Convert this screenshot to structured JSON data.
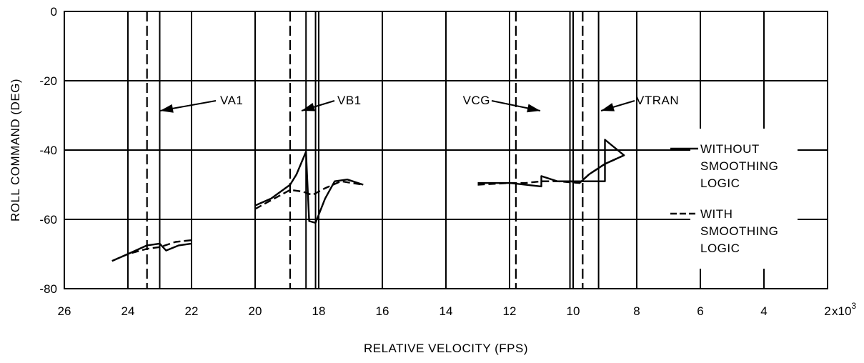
{
  "chart_data": {
    "type": "line",
    "xlabel": "RELATIVE VELOCITY (FPS)",
    "ylabel": "ROLL COMMAND (DEG)",
    "x_multiplier_label": "x10",
    "x_multiplier_exponent": "3",
    "xlim": [
      26,
      2
    ],
    "ylim": [
      -80,
      0
    ],
    "x_ticks": [
      "26",
      "24",
      "22",
      "20",
      "18",
      "16",
      "14",
      "12",
      "10",
      "8",
      "6",
      "4",
      "2"
    ],
    "y_ticks": [
      "0",
      "-20",
      "-40",
      "-60",
      "-80"
    ],
    "grid": true,
    "vertical_lines": [
      {
        "label": "VA1",
        "solid": [
          23.0
        ],
        "dashed": [
          23.4
        ]
      },
      {
        "label": "VB1",
        "solid": [
          18.4
        ],
        "dashed": [
          18.9
        ]
      },
      {
        "label": "VCG",
        "solid": [
          12.0
        ],
        "dashed": [
          11.8
        ]
      },
      {
        "label": "VTRAN",
        "solid": [
          9.2
        ],
        "dashed": [
          9.7
        ]
      }
    ],
    "extra_solid_lines": [
      24.0,
      18.1,
      10.1
    ],
    "series": [
      {
        "name": "WITHOUT SMOOTHING LOGIC",
        "style": "solid",
        "segments": [
          [
            [
              24.5,
              -72
            ],
            [
              24.0,
              -70
            ],
            [
              23.4,
              -67.5
            ],
            [
              23.0,
              -67
            ],
            [
              22.8,
              -69
            ],
            [
              22.4,
              -67.5
            ],
            [
              22.0,
              -67
            ]
          ],
          [
            [
              20.0,
              -56
            ],
            [
              19.5,
              -54
            ],
            [
              18.9,
              -50
            ],
            [
              18.7,
              -47
            ],
            [
              18.4,
              -40.5
            ],
            [
              18.3,
              -60.5
            ],
            [
              18.1,
              -61
            ],
            [
              17.8,
              -54
            ],
            [
              17.5,
              -49
            ],
            [
              17.1,
              -48.5
            ],
            [
              16.6,
              -50
            ]
          ],
          [
            [
              13.0,
              -49.5
            ],
            [
              12.0,
              -49.5
            ],
            [
              11.0,
              -50.5
            ],
            [
              11.0,
              -47.5
            ],
            [
              10.5,
              -49
            ],
            [
              9.7,
              -49
            ],
            [
              9.0,
              -49
            ],
            [
              9.0,
              -37
            ],
            [
              8.4,
              -41.5
            ],
            [
              9.0,
              -44
            ],
            [
              9.5,
              -47
            ],
            [
              9.8,
              -49.5
            ],
            [
              10.1,
              -49
            ]
          ]
        ]
      },
      {
        "name": "WITH SMOOTHING LOGIC",
        "style": "dashed",
        "segments": [
          [
            [
              24.5,
              -72
            ],
            [
              24.0,
              -70
            ],
            [
              23.4,
              -68.5
            ],
            [
              23.0,
              -68
            ],
            [
              22.5,
              -66.5
            ],
            [
              22.0,
              -66
            ]
          ],
          [
            [
              20.0,
              -57
            ],
            [
              19.5,
              -54.5
            ],
            [
              18.9,
              -51.5
            ],
            [
              18.5,
              -52
            ],
            [
              18.2,
              -53
            ],
            [
              17.8,
              -51
            ],
            [
              17.3,
              -49
            ],
            [
              16.6,
              -50
            ]
          ],
          [
            [
              13.0,
              -50
            ],
            [
              12.0,
              -49.5
            ],
            [
              11.5,
              -49.5
            ],
            [
              11.0,
              -49
            ],
            [
              10.5,
              -49
            ],
            [
              9.8,
              -49.5
            ],
            [
              9.5,
              -47
            ],
            [
              9.0,
              -44
            ],
            [
              8.4,
              -41.5
            ]
          ]
        ]
      }
    ],
    "legend": [
      {
        "lines": [
          "WITHOUT",
          "SMOOTHING",
          "LOGIC"
        ],
        "style": "solid"
      },
      {
        "lines": [
          "WITH",
          "SMOOTHING",
          "LOGIC"
        ],
        "style": "dashed"
      }
    ]
  }
}
